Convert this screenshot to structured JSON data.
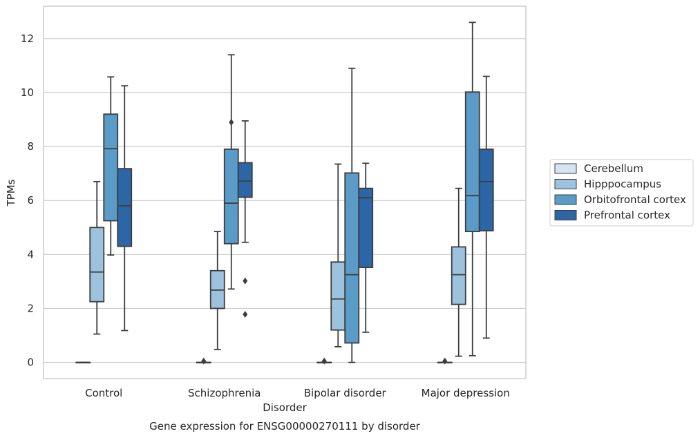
{
  "chart_data": {
    "type": "box",
    "caption": "Gene expression for ENSG00000270111 by disorder",
    "xlabel": "Disorder",
    "ylabel": "TPMs",
    "ylim": [
      -0.6,
      13.2
    ],
    "yticks": [
      0,
      2,
      4,
      6,
      8,
      10,
      12
    ],
    "grid": true,
    "legend_position": "right",
    "categories": [
      "Control",
      "Schizophrenia",
      "Bipolar disorder",
      "Major depression"
    ],
    "series": [
      {
        "name": "Cerebellum",
        "color": "#d6e4f1",
        "boxes": [
          {
            "q1": 0,
            "median": 0,
            "q3": 0,
            "whisker_low": 0,
            "whisker_high": 0,
            "outliers": []
          },
          {
            "q1": 0,
            "median": 0,
            "q3": 0,
            "whisker_low": 0,
            "whisker_high": 0,
            "outliers": [
              0.05
            ]
          },
          {
            "q1": 0,
            "median": 0,
            "q3": 0,
            "whisker_low": 0,
            "whisker_high": 0,
            "outliers": [
              0.05
            ]
          },
          {
            "q1": 0,
            "median": 0,
            "q3": 0,
            "whisker_low": 0,
            "whisker_high": 0,
            "outliers": [
              0.05
            ]
          }
        ]
      },
      {
        "name": "Hipppocampus",
        "color": "#9cc2de",
        "boxes": [
          {
            "q1": 2.25,
            "median": 3.35,
            "q3": 5.0,
            "whisker_low": 1.05,
            "whisker_high": 6.7,
            "outliers": []
          },
          {
            "q1": 2.0,
            "median": 2.68,
            "q3": 3.4,
            "whisker_low": 0.48,
            "whisker_high": 4.85,
            "outliers": []
          },
          {
            "q1": 1.2,
            "median": 2.35,
            "q3": 3.72,
            "whisker_low": 0.58,
            "whisker_high": 7.35,
            "outliers": []
          },
          {
            "q1": 2.15,
            "median": 3.25,
            "q3": 4.28,
            "whisker_low": 0.23,
            "whisker_high": 6.45,
            "outliers": []
          }
        ]
      },
      {
        "name": "Orbitofrontal cortex",
        "color": "#5a9bc8",
        "boxes": [
          {
            "q1": 5.25,
            "median": 7.92,
            "q3": 9.2,
            "whisker_low": 3.98,
            "whisker_high": 10.58,
            "outliers": []
          },
          {
            "q1": 4.4,
            "median": 5.9,
            "q3": 7.9,
            "whisker_low": 2.72,
            "whisker_high": 11.4,
            "outliers": [
              8.9
            ]
          },
          {
            "q1": 0.72,
            "median": 3.25,
            "q3": 7.02,
            "whisker_low": 0.0,
            "whisker_high": 10.9,
            "outliers": []
          },
          {
            "q1": 4.85,
            "median": 6.18,
            "q3": 10.02,
            "whisker_low": 0.25,
            "whisker_high": 12.6,
            "outliers": []
          }
        ]
      },
      {
        "name": "Prefrontal cortex",
        "color": "#2d66a6",
        "boxes": [
          {
            "q1": 4.3,
            "median": 5.8,
            "q3": 7.18,
            "whisker_low": 1.18,
            "whisker_high": 10.25,
            "outliers": []
          },
          {
            "q1": 6.12,
            "median": 6.72,
            "q3": 7.4,
            "whisker_low": 4.45,
            "whisker_high": 8.95,
            "outliers": [
              3.02,
              1.78
            ]
          },
          {
            "q1": 3.52,
            "median": 6.1,
            "q3": 6.45,
            "whisker_low": 1.12,
            "whisker_high": 7.38,
            "outliers": []
          },
          {
            "q1": 4.88,
            "median": 6.7,
            "q3": 7.9,
            "whisker_low": 0.9,
            "whisker_high": 10.6,
            "outliers": []
          }
        ]
      }
    ]
  }
}
